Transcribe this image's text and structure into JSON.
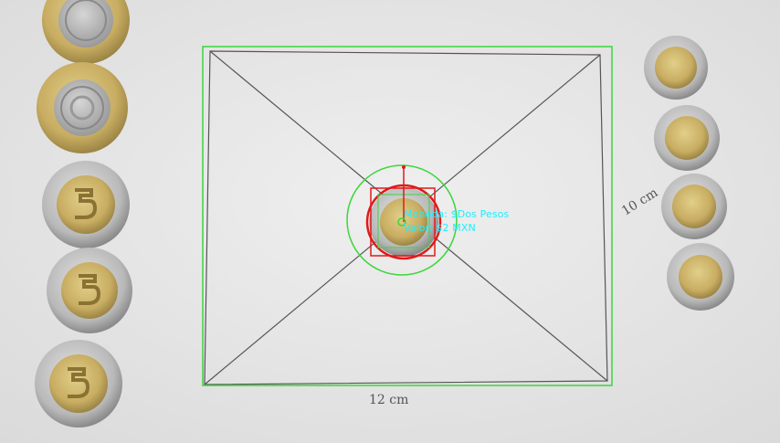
{
  "detection": {
    "coin_label": "Moneda: $Dos Pesos",
    "value_label": "Valor: $2 MXN"
  },
  "annotations": {
    "width_text": "12 cm",
    "height_text": "10 cm"
  },
  "colors": {
    "paper": "#e9e9e9",
    "pencil": "#555555",
    "roi_box": "#3bd63b",
    "detect_circle": "#e01a1a",
    "text_cyan": "#19f0ff"
  }
}
